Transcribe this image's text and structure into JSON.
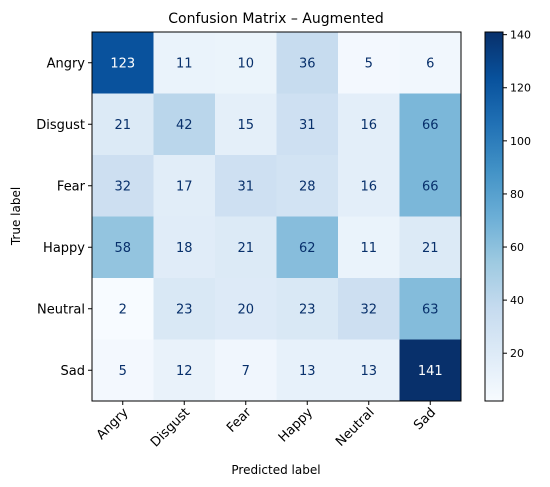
{
  "chart_data": {
    "type": "heatmap",
    "title": "Confusion Matrix – Augmented",
    "xlabel": "Predicted label",
    "ylabel": "True label",
    "x_categories": [
      "Angry",
      "Disgust",
      "Fear",
      "Happy",
      "Neutral",
      "Sad"
    ],
    "y_categories": [
      "Angry",
      "Disgust",
      "Fear",
      "Happy",
      "Neutral",
      "Sad"
    ],
    "values": [
      [
        123,
        11,
        10,
        36,
        5,
        6
      ],
      [
        21,
        42,
        15,
        31,
        16,
        66
      ],
      [
        32,
        17,
        31,
        28,
        16,
        66
      ],
      [
        58,
        18,
        21,
        62,
        11,
        21
      ],
      [
        2,
        23,
        20,
        23,
        32,
        63
      ],
      [
        5,
        12,
        7,
        13,
        13,
        141
      ]
    ],
    "colormap": "Blues",
    "colorbar": {
      "range": [
        2,
        141
      ],
      "ticks": [
        20,
        40,
        60,
        80,
        100,
        120,
        140
      ]
    },
    "grid": false,
    "x_tick_rotation_deg": 45
  }
}
